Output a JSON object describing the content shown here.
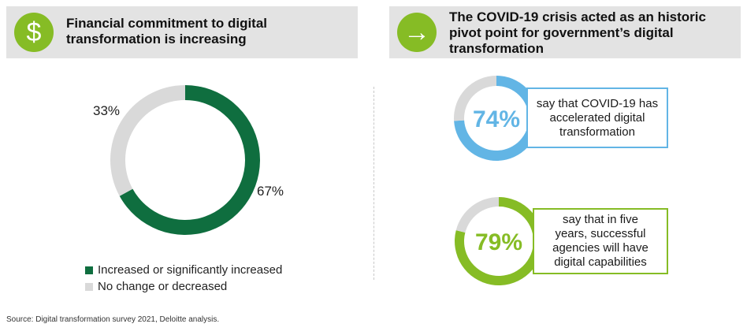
{
  "left_panel": {
    "title_lines": [
      "Financial commitment to digital",
      "transformation is increasing"
    ],
    "icon": "dollar-icon",
    "icon_glyph": "$",
    "icon_color": "#86bc25"
  },
  "right_panel": {
    "title_lines": [
      "The COVID-19 crisis acted as an historic",
      "pivot point for government’s digital",
      "transformation"
    ],
    "icon": "arrow-right-icon",
    "icon_glyph": "→",
    "icon_color": "#86bc25"
  },
  "chart_data": [
    {
      "type": "pie",
      "subtype": "donut",
      "categories": [
        "Increased or significantly increased",
        "No change or decreased"
      ],
      "values": [
        67,
        33
      ],
      "value_labels": [
        "67%",
        "33%"
      ],
      "colors": [
        "#0f6e3f",
        "#d9d9d9"
      ],
      "legend_position": "bottom-left",
      "legend": [
        "Increased or significantly increased",
        "No change or decreased"
      ]
    },
    {
      "type": "pie",
      "subtype": "donut-stat",
      "value": 74,
      "label": "74%",
      "text_lines": [
        "say that COVID-19 has",
        "accelerated digital",
        "transformation"
      ],
      "color": "#62b5e5",
      "remainder_color": "#d9d9d9"
    },
    {
      "type": "pie",
      "subtype": "donut-stat",
      "value": 79,
      "label": "79%",
      "text_lines": [
        "say that in five",
        "years, successful",
        "agencies will have",
        "digital capabilities"
      ],
      "color": "#86bc25",
      "remainder_color": "#d9d9d9"
    }
  ],
  "source": "Source: Digital transformation survey 2021, Deloitte analysis."
}
